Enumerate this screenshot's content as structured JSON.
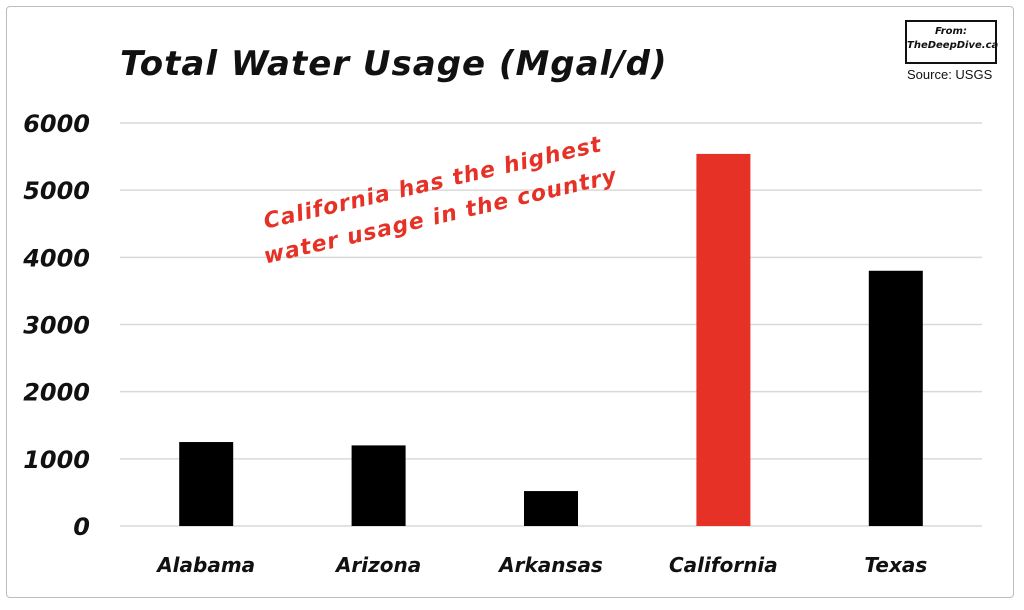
{
  "title": "Total  Water Usage (Mgal/d)",
  "logo": {
    "from": "From:",
    "site": "TheDeepDive.ca"
  },
  "source": "Source: USGS",
  "annotation": {
    "line1": "California has the highest",
    "line2": "water usage in the country"
  },
  "colors": {
    "bar_default": "#000000",
    "bar_highlight": "#e63126",
    "grid": "#d9d9d9",
    "annotation": "#e63126"
  },
  "chart_data": {
    "type": "bar",
    "title": "Total  Water Usage (Mgal/d)",
    "categories": [
      "Alabama",
      "Arizona",
      "Arkansas",
      "California",
      "Texas"
    ],
    "values": [
      1250,
      1200,
      520,
      5540,
      3800
    ],
    "highlight": "California",
    "xlabel": "",
    "ylabel": "",
    "ylim": [
      0,
      6000
    ],
    "yticks": [
      "0",
      "1000",
      "2000",
      "3000",
      "4000",
      "5000",
      "6000"
    ],
    "grid": true,
    "legend": "none"
  }
}
